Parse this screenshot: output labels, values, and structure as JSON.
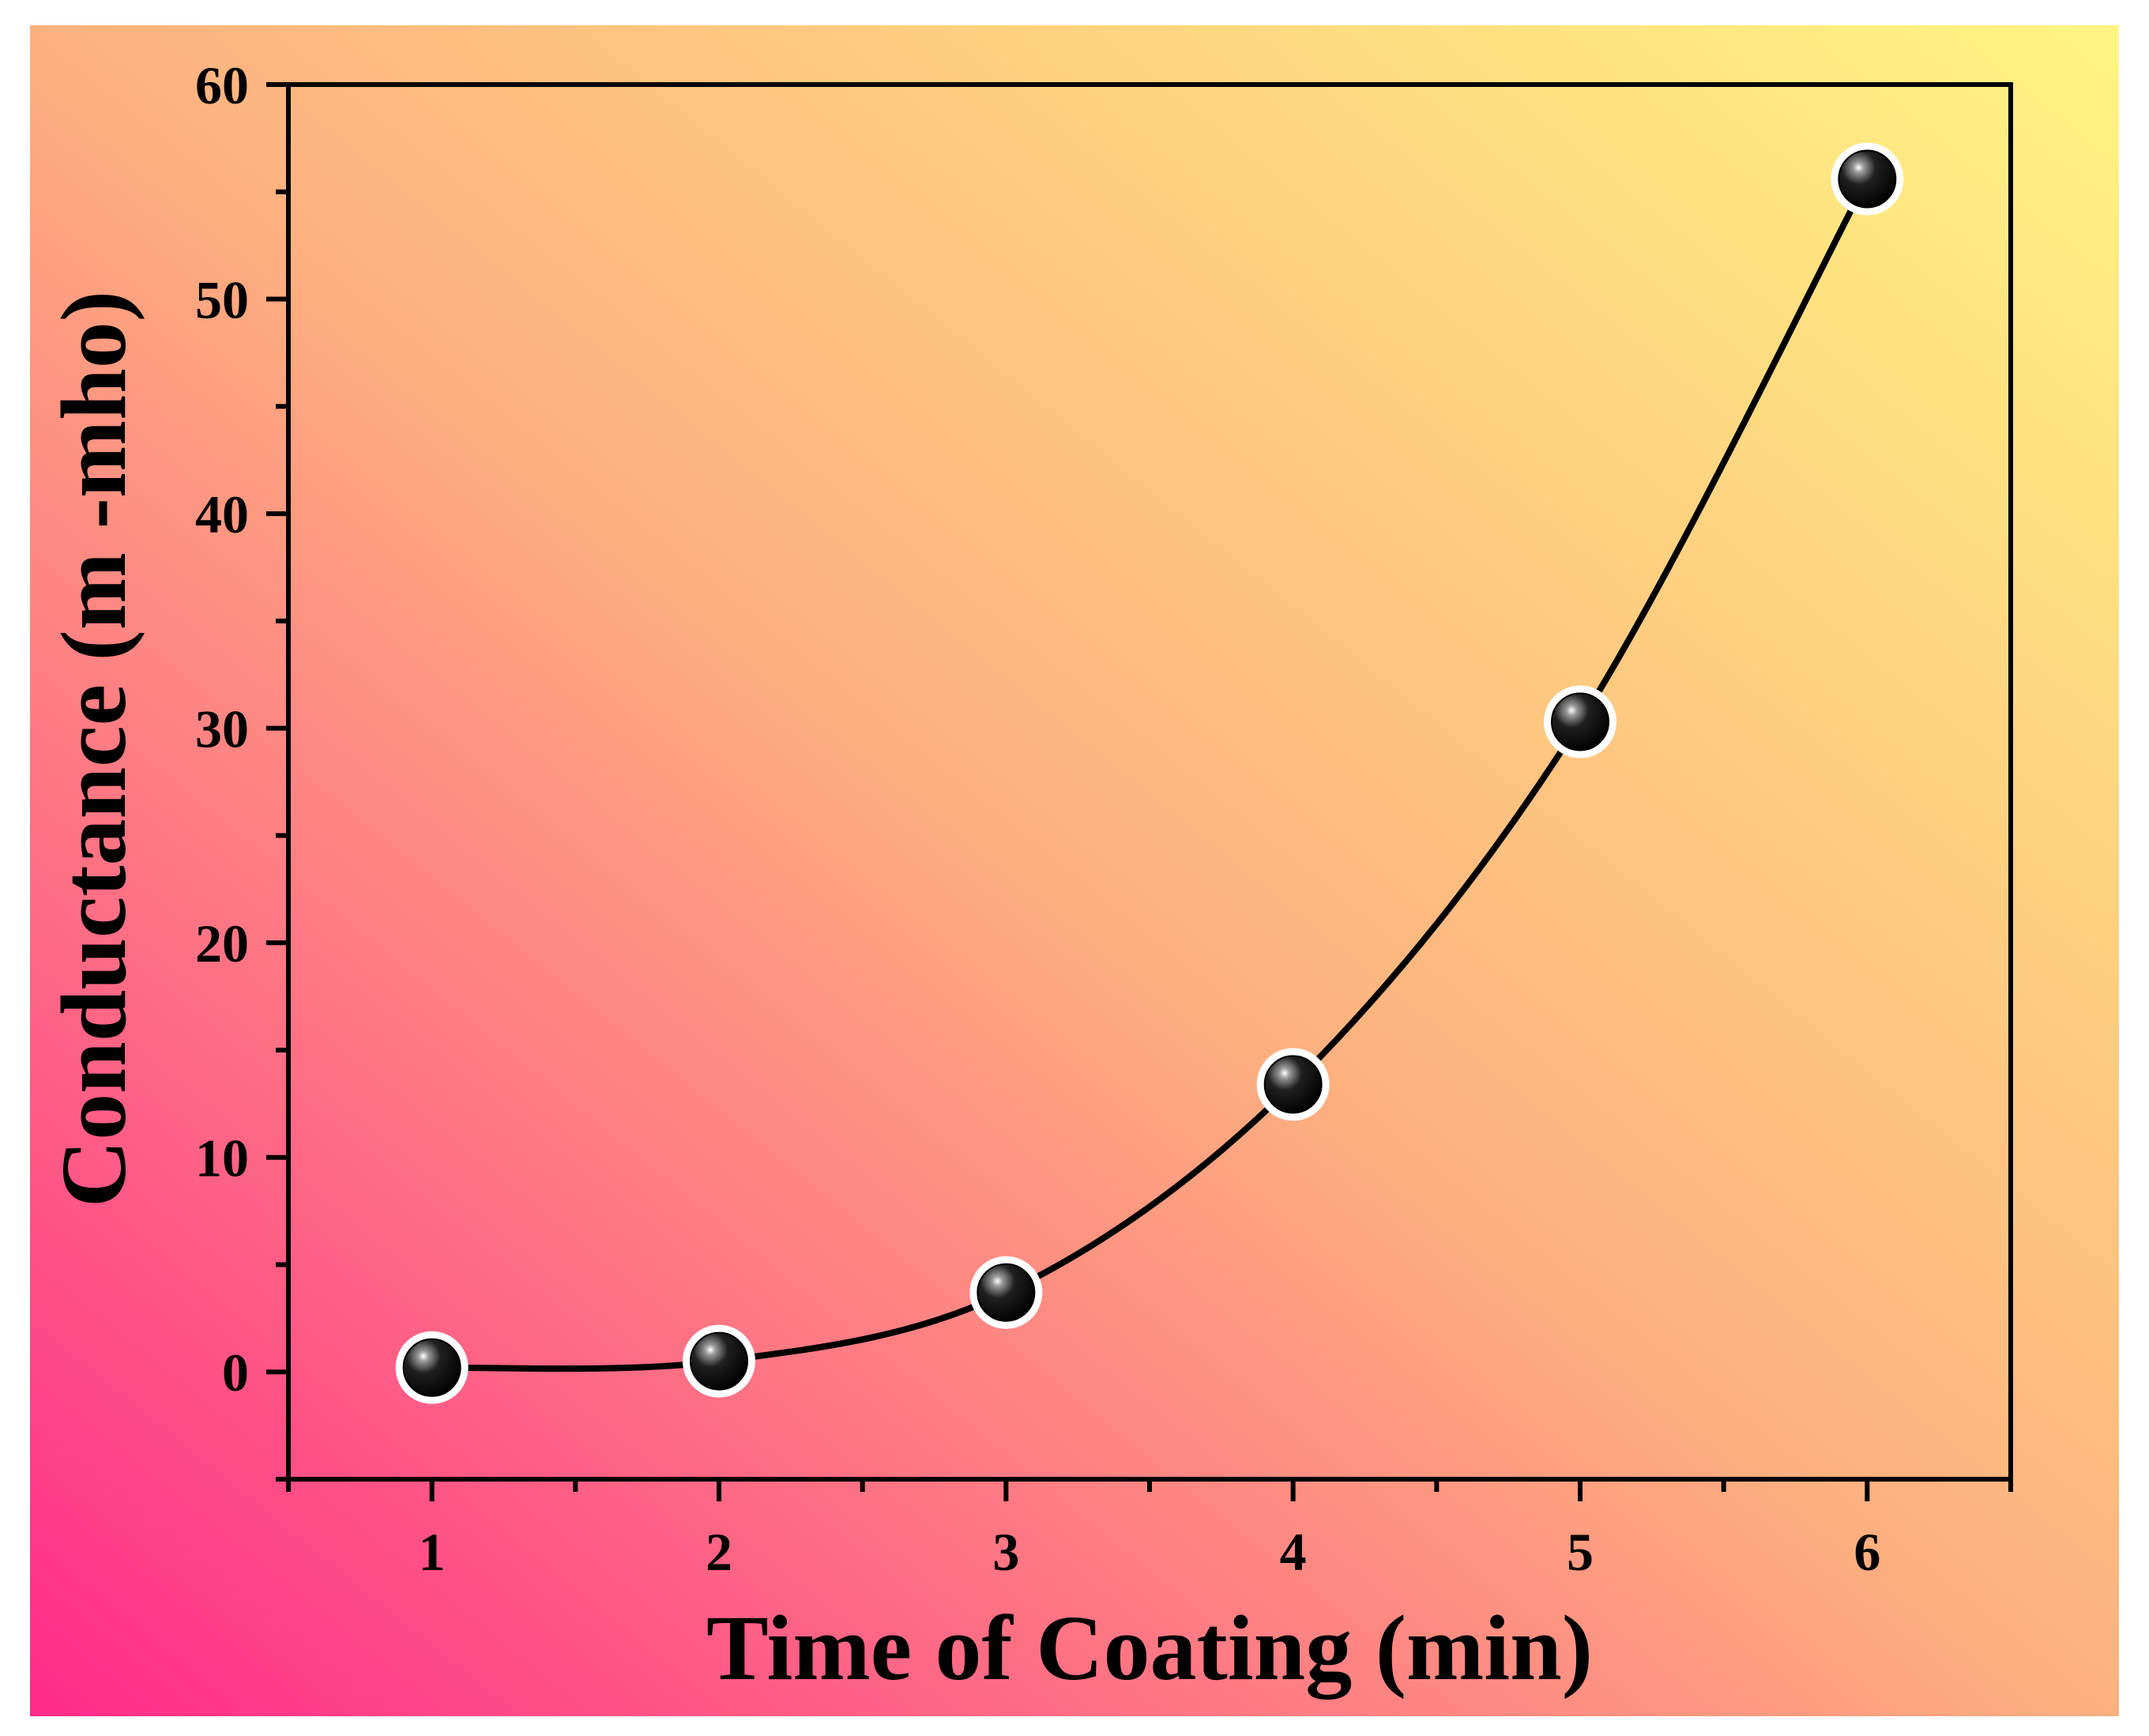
{
  "chart_data": {
    "type": "line",
    "title": "",
    "xlabel": "Time of Coating (min)",
    "ylabel": "Conductance (m -mho)",
    "xlim": [
      0.5,
      6.5
    ],
    "ylim": [
      -5,
      60
    ],
    "x_ticks": [
      "1",
      "2",
      "3",
      "4",
      "5",
      "6"
    ],
    "y_ticks": [
      "0",
      "10",
      "20",
      "30",
      "40",
      "50",
      "60"
    ],
    "grid": false,
    "legend": "none",
    "series": [
      {
        "name": "Conductance",
        "x": [
          1,
          2,
          3,
          4,
          5,
          6
        ],
        "y": [
          0.2,
          0.5,
          3.7,
          13.4,
          30.3,
          55.6
        ]
      }
    ],
    "colors": {
      "background_gradient": [
        "#ff2a8a",
        "#fdb17f",
        "#fff582"
      ],
      "line": "#000000",
      "marker": "#000000",
      "frame_border": "#ffffff"
    }
  }
}
